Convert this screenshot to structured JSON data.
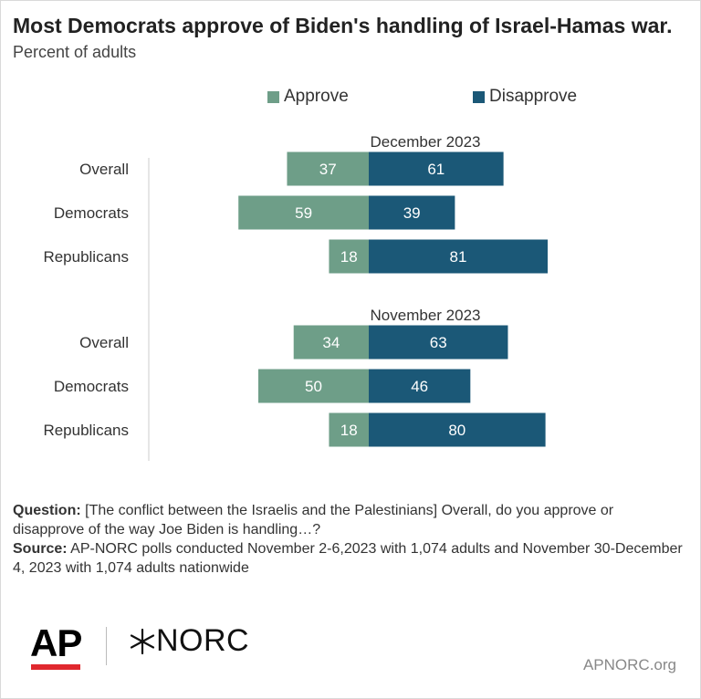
{
  "title": "Most Democrats approve of Biden's handling of Israel-Hamas war.",
  "subtitle": "Percent of adults",
  "colors": {
    "approve": "#6e9e88",
    "disapprove": "#1b5877",
    "label_text": "#ffffff",
    "axis_line": "#cccccc"
  },
  "legend": {
    "approve_label": "Approve",
    "disapprove_label": "Disapprove"
  },
  "chart_data": {
    "type": "bar",
    "orientation": "horizontal-diverging",
    "grid": false,
    "legend_placement": "top",
    "series": [
      {
        "name": "Approve",
        "direction": "left"
      },
      {
        "name": "Disapprove",
        "direction": "right"
      }
    ],
    "groups": [
      {
        "label": "December 2023",
        "rows": [
          {
            "category": "Overall",
            "approve": 37,
            "disapprove": 61
          },
          {
            "category": "Democrats",
            "approve": 59,
            "disapprove": 39
          },
          {
            "category": "Republicans",
            "approve": 18,
            "disapprove": 81
          }
        ]
      },
      {
        "label": "November 2023",
        "rows": [
          {
            "category": "Overall",
            "approve": 34,
            "disapprove": 63
          },
          {
            "category": "Democrats",
            "approve": 50,
            "disapprove": 46
          },
          {
            "category": "Republicans",
            "approve": 18,
            "disapprove": 80
          }
        ]
      }
    ]
  },
  "footnote": {
    "question_label": "Question:",
    "question_text": " [The conflict between the Israelis and the Palestinians] Overall, do you approve or disapprove of the way Joe Biden is handling…?",
    "source_label": "Source:",
    "source_text": " AP-NORC polls conducted November 2-6,2023 with 1,074 adults and November 30-December 4, 2023 with 1,074 adults nationwide"
  },
  "branding": {
    "ap_logo": "AP",
    "norc_logo": "NORC",
    "norc_icon": "star-burst-icon",
    "website": "APNORC.org"
  }
}
